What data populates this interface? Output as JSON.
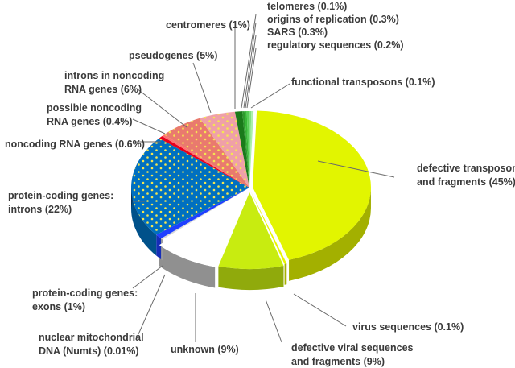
{
  "chart_data": {
    "type": "pie",
    "style": "3d-exploded",
    "title": "",
    "slices": [
      {
        "key": "defective_transposons",
        "label": [
          "defective transposons",
          "and fragments (45%)"
        ],
        "value": 45,
        "color": "#e2f500",
        "pattern": "none"
      },
      {
        "key": "virus_sequences",
        "label": [
          "virus sequences (0.1%)"
        ],
        "value": 0.1,
        "color": "#e6f600",
        "pattern": "none"
      },
      {
        "key": "defective_viral",
        "label": [
          "defective viral sequences",
          "and fragments (9%)"
        ],
        "value": 9,
        "color": "#c8ec10",
        "pattern": "none"
      },
      {
        "key": "unknown",
        "label": [
          "unknown (9%)"
        ],
        "value": 9,
        "color": "#ffffff",
        "pattern": "none"
      },
      {
        "key": "numts",
        "label": [
          "nuclear mitochondrial",
          "DNA (Numts) (0.01%)"
        ],
        "value": 0.01,
        "color": "#d9d9d9",
        "pattern": "none"
      },
      {
        "key": "exons",
        "label": [
          "protein-coding genes:",
          "exons (1%)"
        ],
        "value": 1,
        "color": "#1f3fff",
        "pattern": "none"
      },
      {
        "key": "introns",
        "label": [
          "protein-coding genes:",
          "introns (22%)"
        ],
        "value": 22,
        "color": "#0070c0",
        "pattern": "dots"
      },
      {
        "key": "noncoding_rna",
        "label": [
          "noncoding RNA genes (0.6%)"
        ],
        "value": 0.6,
        "color": "#e8001c",
        "pattern": "none"
      },
      {
        "key": "possible_noncoding",
        "label": [
          "possible noncoding",
          "RNA genes (0.4%)"
        ],
        "value": 0.4,
        "color": "#ff7070",
        "pattern": "none"
      },
      {
        "key": "introns_noncoding",
        "label": [
          "introns in noncoding",
          "RNA genes (6%)"
        ],
        "value": 6,
        "color": "#e97a6e",
        "pattern": "dots"
      },
      {
        "key": "pseudogenes",
        "label": [
          "pseudogenes (5%)"
        ],
        "value": 5,
        "color": "#efa0a8",
        "pattern": "dots"
      },
      {
        "key": "centromeres",
        "label": [
          "centromeres (1%)"
        ],
        "value": 1,
        "color": "#1a7a1a",
        "pattern": "none"
      },
      {
        "key": "telomeres",
        "label": [
          "telomeres (0.1%)"
        ],
        "value": 0.1,
        "color": "#2e9a2e",
        "pattern": "none"
      },
      {
        "key": "origins",
        "label": [
          "origins of replication (0.3%)"
        ],
        "value": 0.3,
        "color": "#38b838",
        "pattern": "none"
      },
      {
        "key": "sars",
        "label": [
          "SARS (0.3%)"
        ],
        "value": 0.3,
        "color": "#56cc56",
        "pattern": "none"
      },
      {
        "key": "regulatory",
        "label": [
          "regulatory sequences (0.2%)"
        ],
        "value": 0.2,
        "color": "#7fe07f",
        "pattern": "none"
      },
      {
        "key": "functional_transposons",
        "label": [
          "functional transposons (0.1%)"
        ],
        "value": 0.1,
        "color": "#a9f0a9",
        "pattern": "none"
      }
    ]
  }
}
